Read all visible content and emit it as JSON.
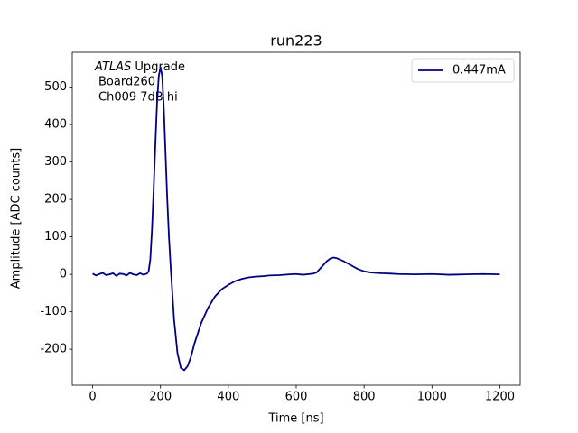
{
  "chart_data": {
    "type": "line",
    "title": "run223",
    "xlabel": "Time [ns]",
    "ylabel": "Amplitude [ADC counts]",
    "annotations": [
      "ATLAS",
      "Upgrade",
      "Board260",
      "Ch009 7dB hi"
    ],
    "x": [
      0,
      10,
      20,
      30,
      40,
      50,
      60,
      70,
      80,
      90,
      100,
      110,
      120,
      130,
      140,
      150,
      160,
      165,
      170,
      175,
      180,
      185,
      190,
      195,
      200,
      205,
      210,
      215,
      220,
      225,
      230,
      240,
      250,
      260,
      270,
      280,
      290,
      300,
      320,
      340,
      360,
      380,
      400,
      420,
      440,
      460,
      480,
      500,
      520,
      550,
      580,
      600,
      620,
      640,
      650,
      660,
      670,
      680,
      690,
      700,
      710,
      720,
      740,
      760,
      780,
      800,
      820,
      850,
      880,
      900,
      950,
      1000,
      1050,
      1100,
      1150,
      1200
    ],
    "series": [
      {
        "name": "0.447mA",
        "color": "#000080",
        "values": [
          2,
          -3,
          1,
          4,
          -2,
          0,
          3,
          -4,
          2,
          1,
          -3,
          4,
          0,
          -2,
          3,
          -1,
          2,
          8,
          40,
          120,
          230,
          350,
          460,
          530,
          553,
          530,
          440,
          320,
          200,
          100,
          20,
          -120,
          -210,
          -250,
          -256,
          -245,
          -220,
          -185,
          -130,
          -90,
          -60,
          -40,
          -28,
          -18,
          -12,
          -8,
          -6,
          -5,
          -3,
          -2,
          0,
          1,
          -1,
          1,
          2,
          5,
          15,
          25,
          35,
          42,
          45,
          43,
          35,
          25,
          15,
          8,
          5,
          3,
          2,
          1,
          0,
          1,
          -1,
          0,
          1,
          0
        ]
      }
    ],
    "xlim": [
      -60,
      1260
    ],
    "ylim": [
      -296,
      593
    ],
    "xticks": [
      0,
      200,
      400,
      600,
      800,
      1000,
      1200
    ],
    "yticks": [
      -200,
      -100,
      0,
      100,
      200,
      300,
      400,
      500
    ],
    "legend": "upper right"
  }
}
